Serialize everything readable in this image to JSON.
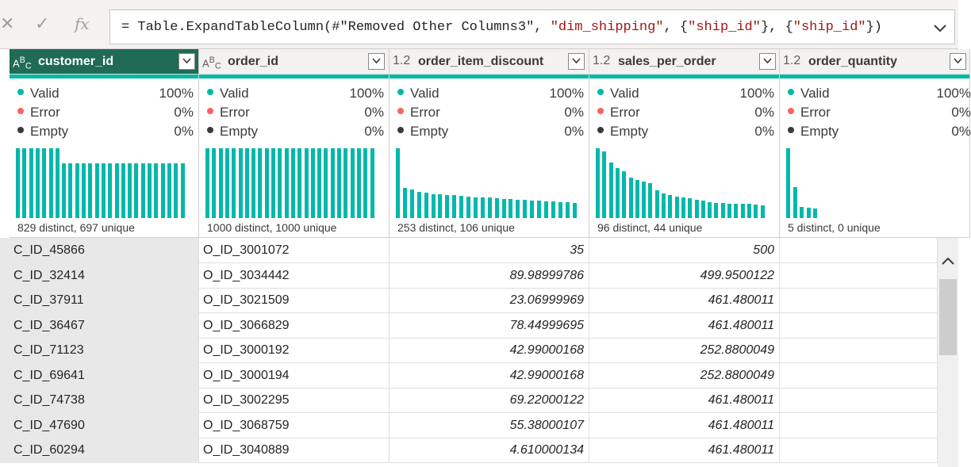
{
  "formula_bar": {
    "cancel_icon": "close-icon",
    "commit_icon": "check-icon",
    "fx_label": "fx",
    "formula_prefix": "= Table.ExpandTableColumn(",
    "formula_arg1": "#\"Removed Other Columns3\"",
    "formula_sep1": ", ",
    "formula_arg2": "\"dim_shipping\"",
    "formula_sep2": ", {",
    "formula_arg3": "\"ship_id\"",
    "formula_sep3": "}, {",
    "formula_arg4": "\"ship_id\"",
    "formula_suffix": "})"
  },
  "columns": [
    {
      "type": "ABC",
      "name": "customer_id",
      "selected": true,
      "valid_label": "Valid",
      "valid": "100%",
      "error_label": "Error",
      "error": "0%",
      "empty_label": "Empty",
      "empty": "0%",
      "distinct": "829 distinct, 697 unique",
      "histogram": [
        1,
        1,
        1,
        1,
        1,
        1,
        1,
        0.78,
        0.78,
        0.78,
        0.78,
        0.78,
        0.78,
        0.78,
        0.78,
        0.78,
        0.78,
        0.78,
        0.78,
        0.78,
        0.78,
        0.78,
        0.78,
        0.78,
        0.78,
        0.78
      ]
    },
    {
      "type": "ABC",
      "name": "order_id",
      "selected": false,
      "valid_label": "Valid",
      "valid": "100%",
      "error_label": "Error",
      "error": "0%",
      "empty_label": "Empty",
      "empty": "0%",
      "distinct": "1000 distinct, 1000 unique",
      "histogram": [
        1,
        1,
        1,
        1,
        1,
        1,
        1,
        1,
        1,
        1,
        1,
        1,
        1,
        1,
        1,
        1,
        1,
        1,
        1,
        1,
        1,
        1,
        1,
        1,
        1,
        1
      ]
    },
    {
      "type": "1.2",
      "name": "order_item_discount",
      "selected": false,
      "valid_label": "Valid",
      "valid": "100%",
      "error_label": "Error",
      "error": "0%",
      "empty_label": "Empty",
      "empty": "0%",
      "distinct": "253 distinct, 106 unique",
      "histogram": [
        1,
        0.43,
        0.41,
        0.38,
        0.36,
        0.34,
        0.34,
        0.33,
        0.33,
        0.32,
        0.31,
        0.3,
        0.29,
        0.29,
        0.28,
        0.27,
        0.27,
        0.26,
        0.26,
        0.25,
        0.25,
        0.24,
        0.24,
        0.23,
        0.23,
        0.22
      ]
    },
    {
      "type": "1.2",
      "name": "sales_per_order",
      "selected": false,
      "valid_label": "Valid",
      "valid": "100%",
      "error_label": "Error",
      "error": "0%",
      "empty_label": "Empty",
      "empty": "0%",
      "distinct": "96 distinct, 44 unique",
      "histogram": [
        1,
        0.96,
        0.8,
        0.72,
        0.67,
        0.58,
        0.54,
        0.52,
        0.5,
        0.4,
        0.35,
        0.33,
        0.31,
        0.3,
        0.28,
        0.26,
        0.25,
        0.23,
        0.22,
        0.22,
        0.21,
        0.2,
        0.2,
        0.2,
        0.19,
        0.18
      ]
    },
    {
      "type": "1.2",
      "name": "order_quantity",
      "selected": false,
      "valid_label": "Valid",
      "valid": "100%",
      "error_label": "Error",
      "error": "0%",
      "empty_label": "Empty",
      "empty": "0%",
      "distinct": "5 distinct, 0 unique",
      "histogram": [
        1,
        0.44,
        0.16,
        0.15,
        0.14
      ]
    }
  ],
  "rows": [
    {
      "customer_id": "C_ID_45866",
      "order_id": "O_ID_3001072",
      "order_item_discount": "35",
      "sales_per_order": "500"
    },
    {
      "customer_id": "C_ID_32414",
      "order_id": "O_ID_3034442",
      "order_item_discount": "89.98999786",
      "sales_per_order": "499.9500122"
    },
    {
      "customer_id": "C_ID_37911",
      "order_id": "O_ID_3021509",
      "order_item_discount": "23.06999969",
      "sales_per_order": "461.480011"
    },
    {
      "customer_id": "C_ID_36467",
      "order_id": "O_ID_3066829",
      "order_item_discount": "78.44999695",
      "sales_per_order": "461.480011"
    },
    {
      "customer_id": "C_ID_71123",
      "order_id": "O_ID_3000192",
      "order_item_discount": "42.99000168",
      "sales_per_order": "252.8800049"
    },
    {
      "customer_id": "C_ID_69641",
      "order_id": "O_ID_3000194",
      "order_item_discount": "42.99000168",
      "sales_per_order": "252.8800049"
    },
    {
      "customer_id": "C_ID_74738",
      "order_id": "O_ID_3002295",
      "order_item_discount": "69.22000122",
      "sales_per_order": "461.480011"
    },
    {
      "customer_id": "C_ID_47690",
      "order_id": "O_ID_3068759",
      "order_item_discount": "55.38000107",
      "sales_per_order": "461.480011"
    },
    {
      "customer_id": "C_ID_60294",
      "order_id": "O_ID_3040889",
      "order_item_discount": "4.610000134",
      "sales_per_order": "461.480011"
    }
  ],
  "colors": {
    "accent": "#01b8aa",
    "selected_header": "#1f6b54",
    "valid": "#01b8aa",
    "error": "#fd625e",
    "empty": "#3b3a39"
  }
}
